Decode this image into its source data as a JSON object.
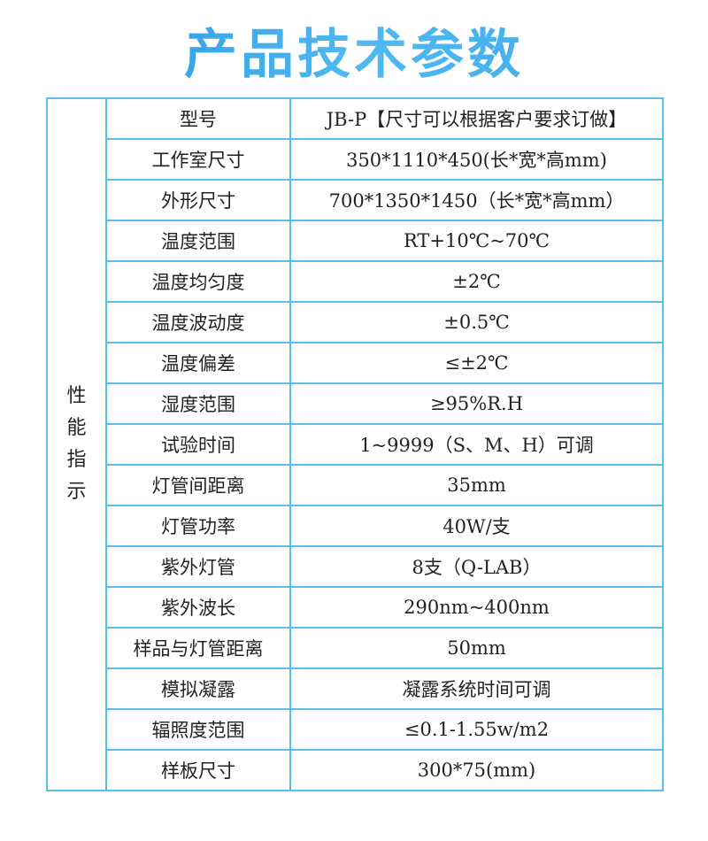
{
  "title": "产品技术参数",
  "colors": {
    "border": "#5bbcef",
    "title_start": "#1e8fdc",
    "title_end": "#4fb9f2"
  },
  "group_label": "性能指示",
  "rows": [
    {
      "label": "型号",
      "value": "JB-P【尺寸可以根据客户要求订做】"
    },
    {
      "label": "工作室尺寸",
      "value": "350*1110*450(长*宽*高mm)"
    },
    {
      "label": "外形尺寸",
      "value": "700*1350*1450（长*宽*高mm）"
    },
    {
      "label": "温度范围",
      "value": "RT+10℃~70℃"
    },
    {
      "label": "温度均匀度",
      "value": "±2℃"
    },
    {
      "label": "温度波动度",
      "value": "±0.5℃"
    },
    {
      "label": "温度偏差",
      "value": "≤±2℃"
    },
    {
      "label": "湿度范围",
      "value": "≥95%R.H"
    },
    {
      "label": "试验时间",
      "value": "1~9999（S、M、H）可调"
    },
    {
      "label": "灯管间距离",
      "value": "35mm"
    },
    {
      "label": "灯管功率",
      "value": "40W/支"
    },
    {
      "label": "紫外灯管",
      "value": "8支（Q-LAB）"
    },
    {
      "label": "紫外波长",
      "value": "290nm~400nm"
    },
    {
      "label": "样品与灯管距离",
      "value": "50mm"
    },
    {
      "label": "模拟凝露",
      "value": "凝露系统时间可调"
    },
    {
      "label": "辐照度范围",
      "value": "≤0.1-1.55w/m2"
    },
    {
      "label": "样板尺寸",
      "value": "300*75(mm)"
    }
  ]
}
